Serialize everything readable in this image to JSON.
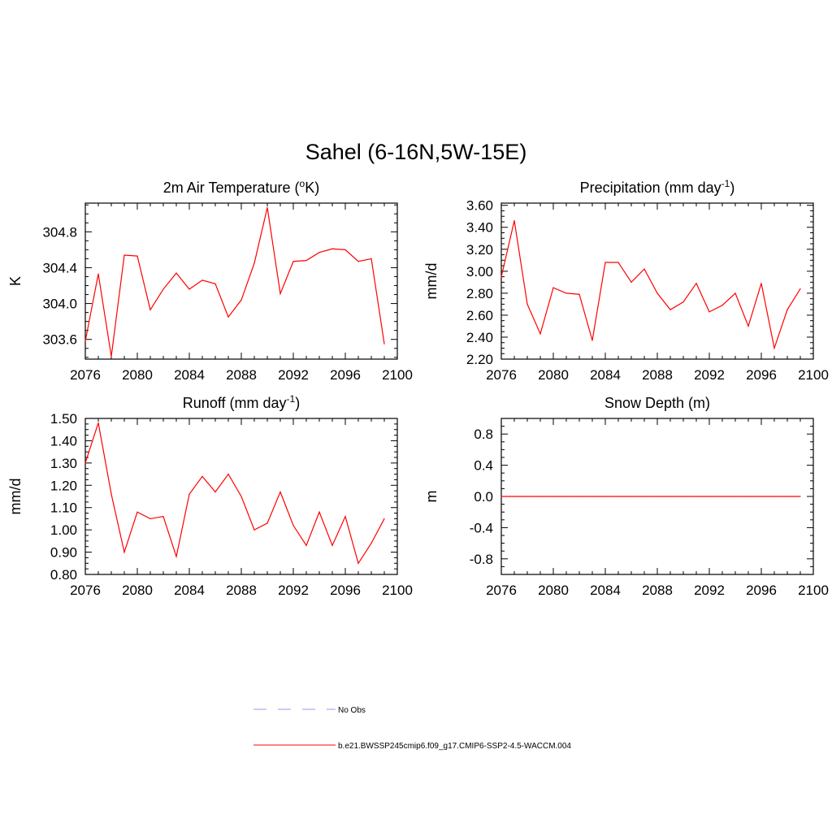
{
  "title": "Sahel (6-16N,5W-15E)",
  "chart_data": [
    {
      "type": "line",
      "title": "2m Air Temperature (",
      "title_sup": "o",
      "title_end": "K)",
      "ylabel": "K",
      "xlim": [
        2076,
        2100
      ],
      "ylim": [
        303.38,
        305.12
      ],
      "xticks": [
        2076,
        2080,
        2084,
        2088,
        2092,
        2096,
        2100
      ],
      "yticks": [
        "303.6",
        "304.0",
        "304.4",
        "304.8"
      ],
      "x": [
        2076,
        2077,
        2078,
        2079,
        2080,
        2081,
        2082,
        2083,
        2084,
        2085,
        2086,
        2087,
        2088,
        2089,
        2090,
        2091,
        2092,
        2093,
        2094,
        2095,
        2096,
        2097,
        2098,
        2099
      ],
      "series": [
        {
          "color": "#ff0000",
          "values": [
            303.58,
            304.33,
            303.41,
            304.54,
            304.53,
            303.93,
            304.16,
            304.34,
            304.16,
            304.26,
            304.22,
            303.85,
            304.04,
            304.45,
            305.07,
            304.11,
            304.47,
            304.48,
            304.57,
            304.61,
            304.6,
            304.47,
            304.5,
            303.55
          ]
        }
      ]
    },
    {
      "type": "line",
      "title": "Precipitation (mm day",
      "title_sup": "-1",
      "title_end": ")",
      "ylabel": "mm/d",
      "xlim": [
        2076,
        2100
      ],
      "ylim": [
        2.2,
        3.62
      ],
      "xticks": [
        2076,
        2080,
        2084,
        2088,
        2092,
        2096,
        2100
      ],
      "yticks": [
        "2.20",
        "2.40",
        "2.60",
        "2.80",
        "3.00",
        "3.20",
        "3.40",
        "3.60"
      ],
      "x": [
        2076,
        2077,
        2078,
        2079,
        2080,
        2081,
        2082,
        2083,
        2084,
        2085,
        2086,
        2087,
        2088,
        2089,
        2090,
        2091,
        2092,
        2093,
        2094,
        2095,
        2096,
        2097,
        2098,
        2099
      ],
      "series": [
        {
          "color": "#ff0000",
          "values": [
            2.95,
            3.46,
            2.7,
            2.43,
            2.85,
            2.8,
            2.79,
            2.37,
            3.08,
            3.08,
            2.9,
            3.02,
            2.8,
            2.65,
            2.72,
            2.89,
            2.63,
            2.69,
            2.8,
            2.5,
            2.89,
            2.3,
            2.65,
            2.84
          ]
        }
      ]
    },
    {
      "type": "line",
      "title": "Runoff (mm day",
      "title_sup": "-1",
      "title_end": ")",
      "ylabel": "mm/d",
      "xlim": [
        2076,
        2100
      ],
      "ylim": [
        0.8,
        1.5
      ],
      "xticks": [
        2076,
        2080,
        2084,
        2088,
        2092,
        2096,
        2100
      ],
      "yticks": [
        "0.80",
        "0.90",
        "1.00",
        "1.10",
        "1.20",
        "1.30",
        "1.40",
        "1.50"
      ],
      "x": [
        2076,
        2077,
        2078,
        2079,
        2080,
        2081,
        2082,
        2083,
        2084,
        2085,
        2086,
        2087,
        2088,
        2089,
        2090,
        2091,
        2092,
        2093,
        2094,
        2095,
        2096,
        2097,
        2098,
        2099
      ],
      "series": [
        {
          "color": "#ff0000",
          "values": [
            1.3,
            1.48,
            1.16,
            0.9,
            1.08,
            1.05,
            1.06,
            0.88,
            1.16,
            1.24,
            1.17,
            1.25,
            1.15,
            1.0,
            1.03,
            1.17,
            1.02,
            0.93,
            1.08,
            0.93,
            1.06,
            0.85,
            0.94,
            1.05
          ]
        }
      ]
    },
    {
      "type": "line",
      "title": "Snow Depth (m)",
      "title_sup": "",
      "title_end": "",
      "ylabel": "m",
      "xlim": [
        2076,
        2100
      ],
      "ylim": [
        -1.0,
        1.0
      ],
      "xticks": [
        2076,
        2080,
        2084,
        2088,
        2092,
        2096,
        2100
      ],
      "yticks": [
        "-0.8",
        "-0.4",
        "0.0",
        "0.4",
        "0.8"
      ],
      "x": [
        2076,
        2077,
        2078,
        2079,
        2080,
        2081,
        2082,
        2083,
        2084,
        2085,
        2086,
        2087,
        2088,
        2089,
        2090,
        2091,
        2092,
        2093,
        2094,
        2095,
        2096,
        2097,
        2098,
        2099
      ],
      "series": [
        {
          "color": "#ff0000",
          "values": [
            0,
            0,
            0,
            0,
            0,
            0,
            0,
            0,
            0,
            0,
            0,
            0,
            0,
            0,
            0,
            0,
            0,
            0,
            0,
            0,
            0,
            0,
            0,
            0
          ]
        }
      ]
    }
  ],
  "legend": [
    {
      "label": "No Obs",
      "color": "#9999ee",
      "dash": "dashed"
    },
    {
      "label": "b.e21.BWSSP245cmip6.f09_g17.CMIP6-SSP2-4.5-WACCM.004",
      "color": "#ff0000",
      "dash": "solid"
    }
  ]
}
